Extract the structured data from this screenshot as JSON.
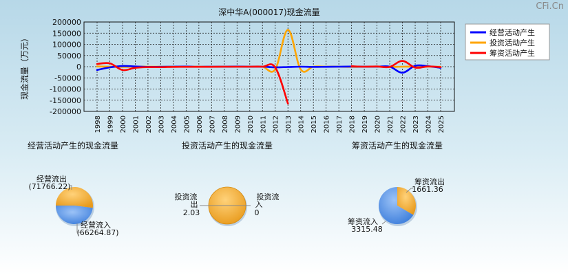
{
  "watermark": "CFi.Cn",
  "colors": {
    "operating": "#0000ff",
    "investing": "#ffa500",
    "financing": "#ff0000",
    "pie_orange": "#f5a623",
    "pie_blue": "#5a95e6"
  },
  "chart_data": [
    {
      "type": "line",
      "title": "深中华A(000017)现金流量",
      "ylabel": "现金流量（万元）",
      "xlabel": "",
      "ylim": [
        -200000,
        200000
      ],
      "yticks": [
        200000,
        150000,
        100000,
        50000,
        0,
        -50000,
        -100000,
        -150000,
        -200000
      ],
      "x": [
        "1998",
        "1999",
        "2000",
        "2001",
        "2002",
        "2003",
        "2004",
        "2005",
        "2006",
        "2007",
        "2008",
        "2009",
        "2010",
        "2011",
        "2012",
        "2013",
        "2014",
        "2015",
        "2016",
        "2017",
        "2018",
        "2019",
        "2020",
        "2021",
        "2022",
        "2023",
        "2024",
        "2025"
      ],
      "grid": true,
      "legend_position": "right",
      "series": [
        {
          "name": "经营活动产生",
          "color_key": "operating",
          "values": [
            -15000,
            -3000,
            3000,
            1000,
            -1000,
            -500,
            0,
            500,
            -500,
            0,
            0,
            500,
            0,
            0,
            -3000,
            -1500,
            0,
            -1000,
            -500,
            0,
            500,
            0,
            0,
            0,
            -27000,
            4000,
            2000,
            -5000
          ]
        },
        {
          "name": "投资活动产生",
          "color_key": "investing",
          "values": [
            1000,
            0,
            -1000,
            0,
            0,
            0,
            0,
            0,
            0,
            0,
            0,
            0,
            0,
            0,
            -12000,
            165000,
            -12000,
            0,
            0,
            0,
            -1000,
            0,
            0,
            -1000,
            0,
            0,
            0,
            0
          ]
        },
        {
          "name": "筹资活动产生",
          "color_key": "financing",
          "values": [
            12000,
            15000,
            -15000,
            -5000,
            -2000,
            -2000,
            -1000,
            -500,
            -500,
            -500,
            0,
            0,
            0,
            0,
            -3000,
            -165000,
            null,
            null,
            null,
            null,
            2000,
            0,
            1000,
            -1000,
            26000,
            -4000,
            1000,
            -2000
          ]
        }
      ]
    },
    {
      "type": "pie",
      "title": "经营活动产生的现金流量",
      "slices": [
        {
          "label": "经营流出",
          "value": -71766.22,
          "value_text": "(71766.22)",
          "color_key": "pie_orange"
        },
        {
          "label": "经营流入",
          "value": -66264.87,
          "value_text": "(66264.87)",
          "color_key": "pie_blue"
        }
      ]
    },
    {
      "type": "pie",
      "title": "投资活动产生的现金流量",
      "slices": [
        {
          "label": "投资流出",
          "value": 2.03,
          "value_text": "2.03",
          "color_key": "pie_orange"
        },
        {
          "label": "投资流入",
          "value": 0,
          "value_text": "0",
          "color_key": "pie_blue"
        }
      ]
    },
    {
      "type": "pie",
      "title": "筹资活动产生的现金流量",
      "slices": [
        {
          "label": "筹资流出",
          "value": 1661.36,
          "value_text": "1661.36",
          "color_key": "pie_orange"
        },
        {
          "label": "筹资流入",
          "value": 3315.48,
          "value_text": "3315.48",
          "color_key": "pie_blue"
        }
      ]
    }
  ]
}
